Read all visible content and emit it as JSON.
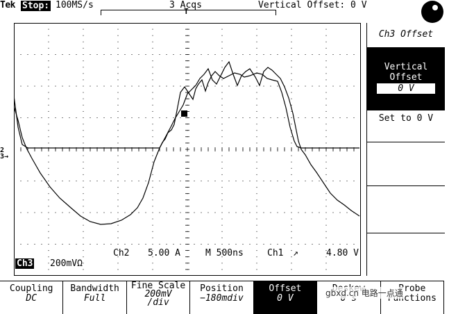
{
  "status": {
    "brand": "Tek",
    "run_state": "Stop:",
    "sample_rate": "100MS/s",
    "acquisitions": "3 Acqs",
    "vertical_offset": "Vertical Offset: 0 V"
  },
  "channel_markers": {
    "ch2": "2",
    "ch3": "3"
  },
  "readouts": {
    "ch2_scale": "Ch2",
    "ch2_value": "5.00 A",
    "timebase": "M 500ns",
    "trigger_source": "Ch1",
    "trigger_level": "4.80 V",
    "ch3_tag": "Ch3",
    "ch3_scale": "200mVΩ"
  },
  "side_menu": {
    "title": "Ch3 Offset",
    "vertical_offset_label": "Vertical Offset",
    "vertical_offset_value": "0 V",
    "set_zero": "Set to 0 V"
  },
  "bottom_menu": [
    {
      "label": "Coupling",
      "value": "DC"
    },
    {
      "label": "Bandwidth",
      "value": "Full"
    },
    {
      "label": "Fine Scale",
      "value": "200mV",
      "value2": "/div"
    },
    {
      "label": "Position",
      "value": "−180mdiv"
    },
    {
      "label": "Offset",
      "value": "0 V"
    },
    {
      "label": "Deskew",
      "value": "0 s"
    },
    {
      "label": "Probe",
      "value": "Functions"
    }
  ],
  "watermark": "gbxd.cn  电路一点通",
  "colors": {
    "trace": "#000000",
    "background": "#ffffff",
    "highlight": "#000000"
  }
}
